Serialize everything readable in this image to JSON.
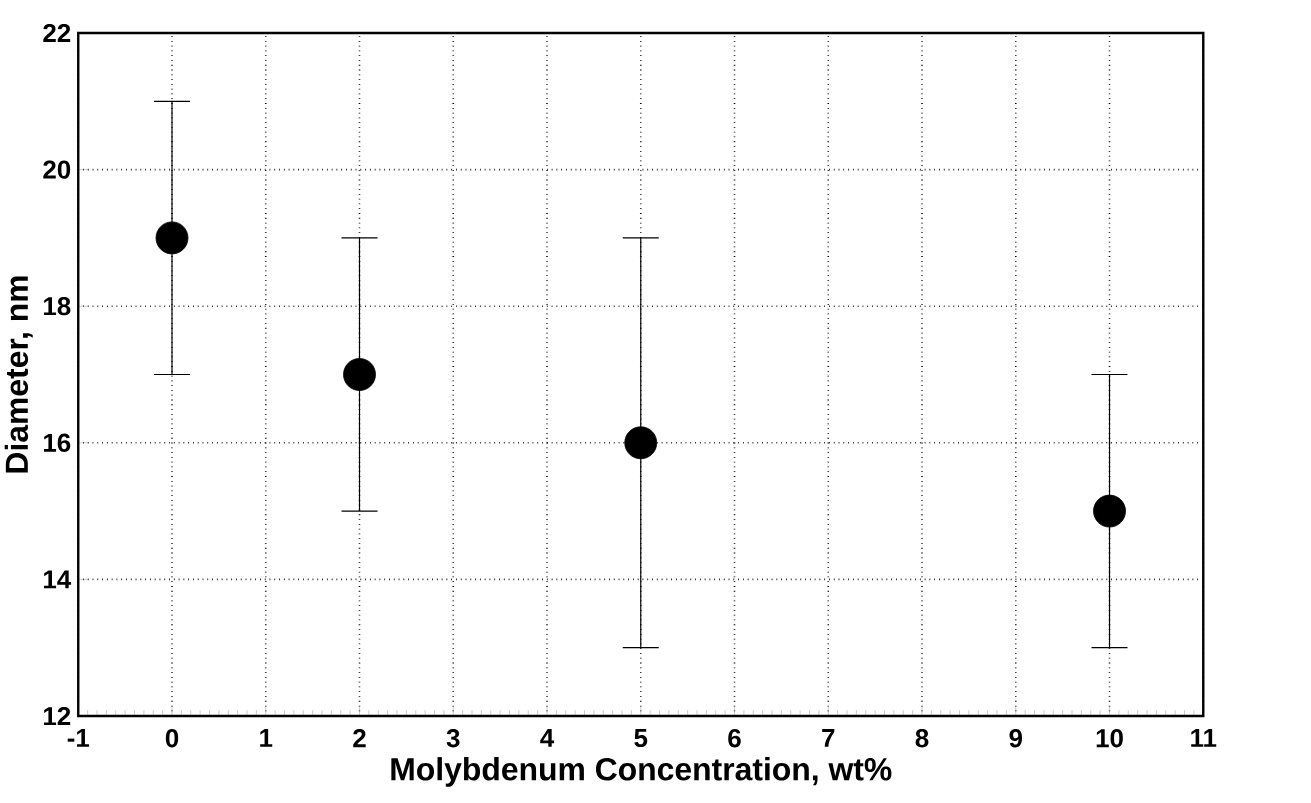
{
  "chart_data": {
    "type": "scatter",
    "xlabel": "Molybdenum Concentration, wt%",
    "ylabel": "Diameter, nm",
    "x": [
      0,
      2,
      5,
      10
    ],
    "values": [
      19,
      17,
      16,
      15
    ],
    "errors": [
      2,
      2,
      3,
      2
    ],
    "color": "#000000",
    "marker": "circle",
    "xlim": [
      -1,
      11
    ],
    "xticks": [
      -1,
      0,
      1,
      2,
      3,
      4,
      5,
      6,
      7,
      8,
      9,
      10,
      11
    ],
    "ylim": [
      12,
      22
    ],
    "yticks": [
      12,
      14,
      16,
      18,
      20,
      22
    ],
    "grid": true
  }
}
